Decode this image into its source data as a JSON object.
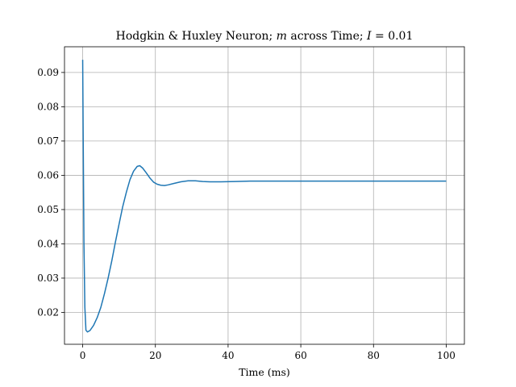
{
  "chart_data": {
    "type": "line",
    "title": "Hodgkin & Huxley Neuron; m across Time; I = 0.01",
    "title_parts": {
      "prefix": "Hodgkin & Huxley Neuron; ",
      "var_m": "m",
      "middle": " across Time; ",
      "var_i": "I",
      "suffix": " = 0.01"
    },
    "xlabel": "Time (ms)",
    "ylabel": "",
    "xlim": [
      -5,
      105
    ],
    "ylim": [
      0.0107,
      0.0975
    ],
    "xticks": [
      0,
      20,
      40,
      60,
      80,
      100
    ],
    "yticks": [
      0.02,
      0.03,
      0.04,
      0.05,
      0.06,
      0.07,
      0.08,
      0.09
    ],
    "xtick_labels": [
      "0",
      "20",
      "40",
      "60",
      "80",
      "100"
    ],
    "ytick_labels": [
      "0.02",
      "0.03",
      "0.04",
      "0.05",
      "0.06",
      "0.07",
      "0.08",
      "0.09"
    ],
    "grid": true,
    "line_color": "#1f77b4",
    "series": [
      {
        "x": [
          0,
          0.15,
          0.35,
          0.6,
          0.9,
          1.3,
          2,
          3,
          4,
          5,
          6,
          7,
          8,
          9,
          10,
          11,
          12,
          13,
          14,
          15,
          15.7,
          16.5,
          17.5,
          18.5,
          19.5,
          20.5,
          21.5,
          22.5,
          23.5,
          25,
          27,
          29,
          31,
          33,
          35,
          38,
          42,
          46,
          50,
          60,
          70,
          80,
          90,
          100
        ],
        "y": [
          0.0937,
          0.07,
          0.04,
          0.0215,
          0.0148,
          0.0143,
          0.0147,
          0.0162,
          0.0185,
          0.0215,
          0.0255,
          0.03,
          0.035,
          0.0405,
          0.0457,
          0.0508,
          0.055,
          0.0587,
          0.0612,
          0.0626,
          0.0628,
          0.0621,
          0.0607,
          0.0592,
          0.058,
          0.0574,
          0.0571,
          0.057,
          0.0572,
          0.0576,
          0.0581,
          0.0584,
          0.0584,
          0.0582,
          0.0581,
          0.0581,
          0.0582,
          0.0583,
          0.0583,
          0.0583,
          0.0583,
          0.0583,
          0.0583,
          0.0583
        ]
      }
    ]
  }
}
